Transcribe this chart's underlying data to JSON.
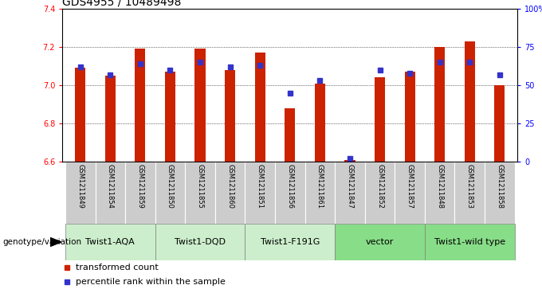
{
  "title": "GDS4955 / 10489498",
  "samples": [
    "GSM1211849",
    "GSM1211854",
    "GSM1211859",
    "GSM1211850",
    "GSM1211855",
    "GSM1211860",
    "GSM1211851",
    "GSM1211856",
    "GSM1211861",
    "GSM1211847",
    "GSM1211852",
    "GSM1211857",
    "GSM1211848",
    "GSM1211853",
    "GSM1211858"
  ],
  "bar_values": [
    7.09,
    7.05,
    7.19,
    7.07,
    7.19,
    7.08,
    7.17,
    6.88,
    7.01,
    6.61,
    7.04,
    7.07,
    7.2,
    7.23,
    7.0
  ],
  "percentile_values": [
    62,
    57,
    64,
    60,
    65,
    62,
    63,
    45,
    53,
    2,
    60,
    58,
    65,
    65,
    57
  ],
  "ylim_left": [
    6.6,
    7.4
  ],
  "ylim_right": [
    0,
    100
  ],
  "yticks_left": [
    6.6,
    6.8,
    7.0,
    7.2,
    7.4
  ],
  "yticks_right": [
    0,
    25,
    50,
    75,
    100
  ],
  "ytick_labels_right": [
    "0",
    "25",
    "50",
    "75",
    "100%"
  ],
  "bar_color": "#cc2200",
  "percentile_color": "#3333cc",
  "background_plot": "#ffffff",
  "background_sample": "#cccccc",
  "groups": [
    {
      "label": "Twist1-AQA",
      "indices": [
        0,
        1,
        2
      ],
      "color": "#cceecc"
    },
    {
      "label": "Twist1-DQD",
      "indices": [
        3,
        4,
        5
      ],
      "color": "#cceecc"
    },
    {
      "label": "Twist1-F191G",
      "indices": [
        6,
        7,
        8
      ],
      "color": "#cceecc"
    },
    {
      "label": "vector",
      "indices": [
        9,
        10,
        11
      ],
      "color": "#88dd88"
    },
    {
      "label": "Twist1-wild type",
      "indices": [
        12,
        13,
        14
      ],
      "color": "#88dd88"
    }
  ],
  "legend_items": [
    {
      "label": "transformed count",
      "color": "#cc2200"
    },
    {
      "label": "percentile rank within the sample",
      "color": "#3333cc"
    }
  ],
  "genotype_label": "genotype/variation",
  "title_fontsize": 10,
  "tick_fontsize": 7,
  "sample_fontsize": 6,
  "group_label_fontsize": 8,
  "legend_fontsize": 8,
  "bar_width": 0.35
}
